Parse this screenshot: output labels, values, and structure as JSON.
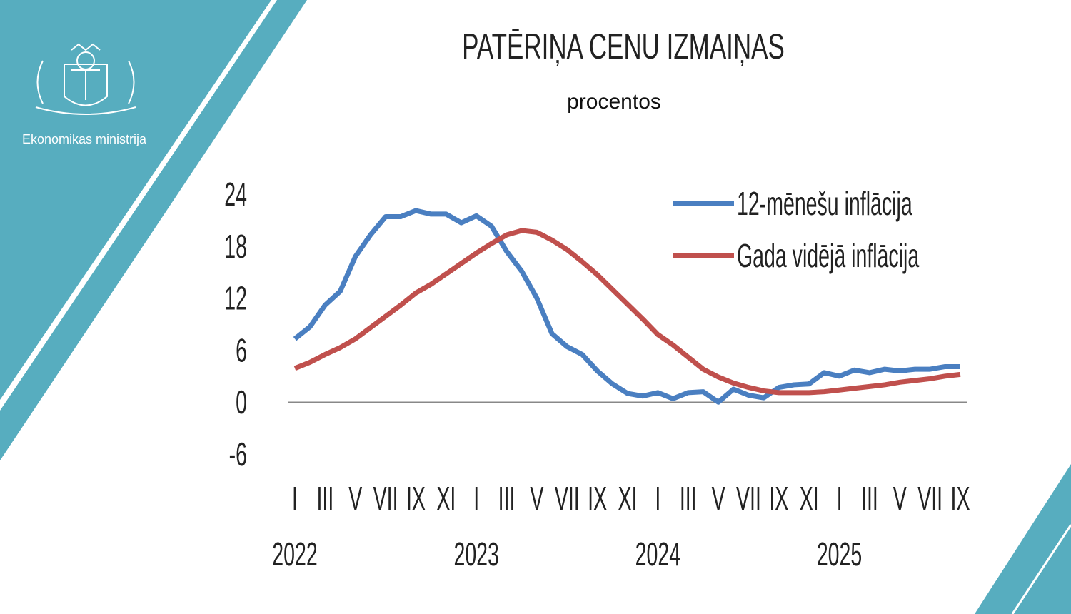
{
  "header": {
    "organization": "Ekonomikas ministrija"
  },
  "chart_data": {
    "type": "line",
    "title": "PATĒRIŅA CENU IZMAIŅAS",
    "subtitle": "procentos",
    "categories": [
      "I",
      null,
      "III",
      null,
      "V",
      null,
      "VII",
      null,
      "IX",
      null,
      "XI",
      null,
      "I",
      null,
      "III",
      null,
      "V",
      null,
      "VII",
      null,
      "IX",
      null,
      "XI",
      null,
      "I",
      null,
      "III",
      null,
      "V",
      null,
      "VII",
      null,
      "IX",
      null,
      "XI",
      null,
      "I",
      null,
      "III",
      null,
      "V",
      null,
      "VII",
      null,
      "IX"
    ],
    "x_group_labels": [
      "2022",
      "2023",
      "2024",
      "2025"
    ],
    "series": [
      {
        "name": "12-mēnešu inflācija",
        "color": "#4a7fc1",
        "values": [
          7.3,
          8.7,
          11.2,
          12.8,
          16.8,
          19.3,
          21.4,
          21.4,
          22.1,
          21.7,
          21.7,
          20.7,
          21.5,
          20.3,
          17.4,
          15.1,
          12.0,
          7.9,
          6.4,
          5.5,
          3.6,
          2.1,
          1.0,
          0.7,
          1.1,
          0.4,
          1.1,
          1.2,
          0.0,
          1.5,
          0.8,
          0.5,
          1.7,
          2.0,
          2.1,
          3.4,
          3.0,
          3.7,
          3.4,
          3.8,
          3.6,
          3.8,
          3.8,
          4.1,
          4.1
        ]
      },
      {
        "name": "Gada vidējā inflācija",
        "color": "#c0504d",
        "values": [
          3.9,
          4.6,
          5.5,
          6.3,
          7.3,
          8.6,
          9.9,
          11.2,
          12.6,
          13.6,
          14.8,
          16.0,
          17.2,
          18.3,
          19.3,
          19.8,
          19.6,
          18.7,
          17.6,
          16.2,
          14.7,
          13.0,
          11.3,
          9.6,
          7.8,
          6.6,
          5.2,
          3.8,
          2.9,
          2.2,
          1.7,
          1.3,
          1.1,
          1.1,
          1.1,
          1.2,
          1.4,
          1.6,
          1.8,
          2.0,
          2.3,
          2.5,
          2.7,
          3.0,
          3.2
        ]
      }
    ],
    "ylim": [
      -6,
      24
    ],
    "yticks": [
      -6,
      0,
      6,
      12,
      18,
      24
    ],
    "zero_line": true,
    "legend": "top-right"
  }
}
